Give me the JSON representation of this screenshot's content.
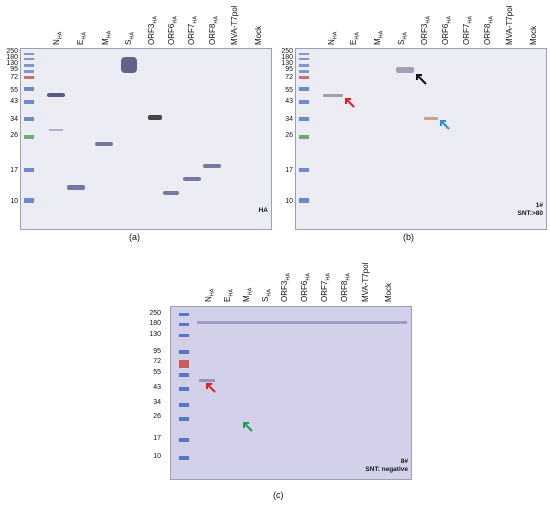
{
  "panels": [
    {
      "id": "a",
      "caption": "(a)",
      "lanes": [
        {
          "name": "N",
          "sub": "HA"
        },
        {
          "name": "E",
          "sub": "HA"
        },
        {
          "name": "M",
          "sub": "HA"
        },
        {
          "name": "S",
          "sub": "HA"
        },
        {
          "name": "ORF3",
          "sub": "HA"
        },
        {
          "name": "ORF6",
          "sub": "HA"
        },
        {
          "name": "ORF7",
          "sub": "HA"
        },
        {
          "name": "ORF8",
          "sub": "HA"
        },
        {
          "name": "MVA-T7pol",
          "sub": ""
        },
        {
          "name": "Mock",
          "sub": ""
        }
      ],
      "mw_markers": [
        "250",
        "180",
        "130",
        "95",
        "72",
        "55",
        "43",
        "34",
        "26",
        "17",
        "10"
      ],
      "corner_label": [
        "HA"
      ]
    },
    {
      "id": "b",
      "caption": "(b)",
      "lanes": [
        {
          "name": "N",
          "sub": "HA"
        },
        {
          "name": "E",
          "sub": "HA"
        },
        {
          "name": "M",
          "sub": "HA"
        },
        {
          "name": "S",
          "sub": "HA"
        },
        {
          "name": "ORF3",
          "sub": "HA"
        },
        {
          "name": "ORF6",
          "sub": "HA"
        },
        {
          "name": "ORF7",
          "sub": "HA"
        },
        {
          "name": "ORF8",
          "sub": "HA"
        },
        {
          "name": "MVA-T7pol",
          "sub": ""
        },
        {
          "name": "Mock",
          "sub": ""
        }
      ],
      "mw_markers": [
        "250",
        "180",
        "130",
        "95",
        "72",
        "55",
        "43",
        "34",
        "26",
        "17",
        "10"
      ],
      "corner_label": [
        "1#",
        "SNT:>80"
      ]
    },
    {
      "id": "c",
      "caption": "(c)",
      "lanes": [
        {
          "name": "N",
          "sub": "HA"
        },
        {
          "name": "E",
          "sub": "HA"
        },
        {
          "name": "M",
          "sub": "HA"
        },
        {
          "name": "S",
          "sub": "HA"
        },
        {
          "name": "ORF3",
          "sub": "HA"
        },
        {
          "name": "ORF6",
          "sub": "HA"
        },
        {
          "name": "ORF7",
          "sub": "HA"
        },
        {
          "name": "ORF8",
          "sub": "HA"
        },
        {
          "name": "MVA-T7pol",
          "sub": ""
        },
        {
          "name": "Mock",
          "sub": ""
        }
      ],
      "mw_markers": [
        "250",
        "180",
        "130",
        "95",
        "72",
        "55",
        "43",
        "34",
        "26",
        "17",
        "10"
      ],
      "corner_label": [
        "8#",
        "SNT: negative"
      ]
    }
  ],
  "colors": {
    "membrane": "#ececf4",
    "membrane_c": "#d3d1ea",
    "band": "#5a5a8a",
    "marker_blue": "#3a5fbf",
    "marker_red": "#c0504d",
    "marker_green": "#4f9a5a",
    "arrow_red": "#e02020",
    "arrow_black": "#111111",
    "arrow_blue": "#2a8fd6",
    "arrow_green": "#1f9a5a"
  }
}
